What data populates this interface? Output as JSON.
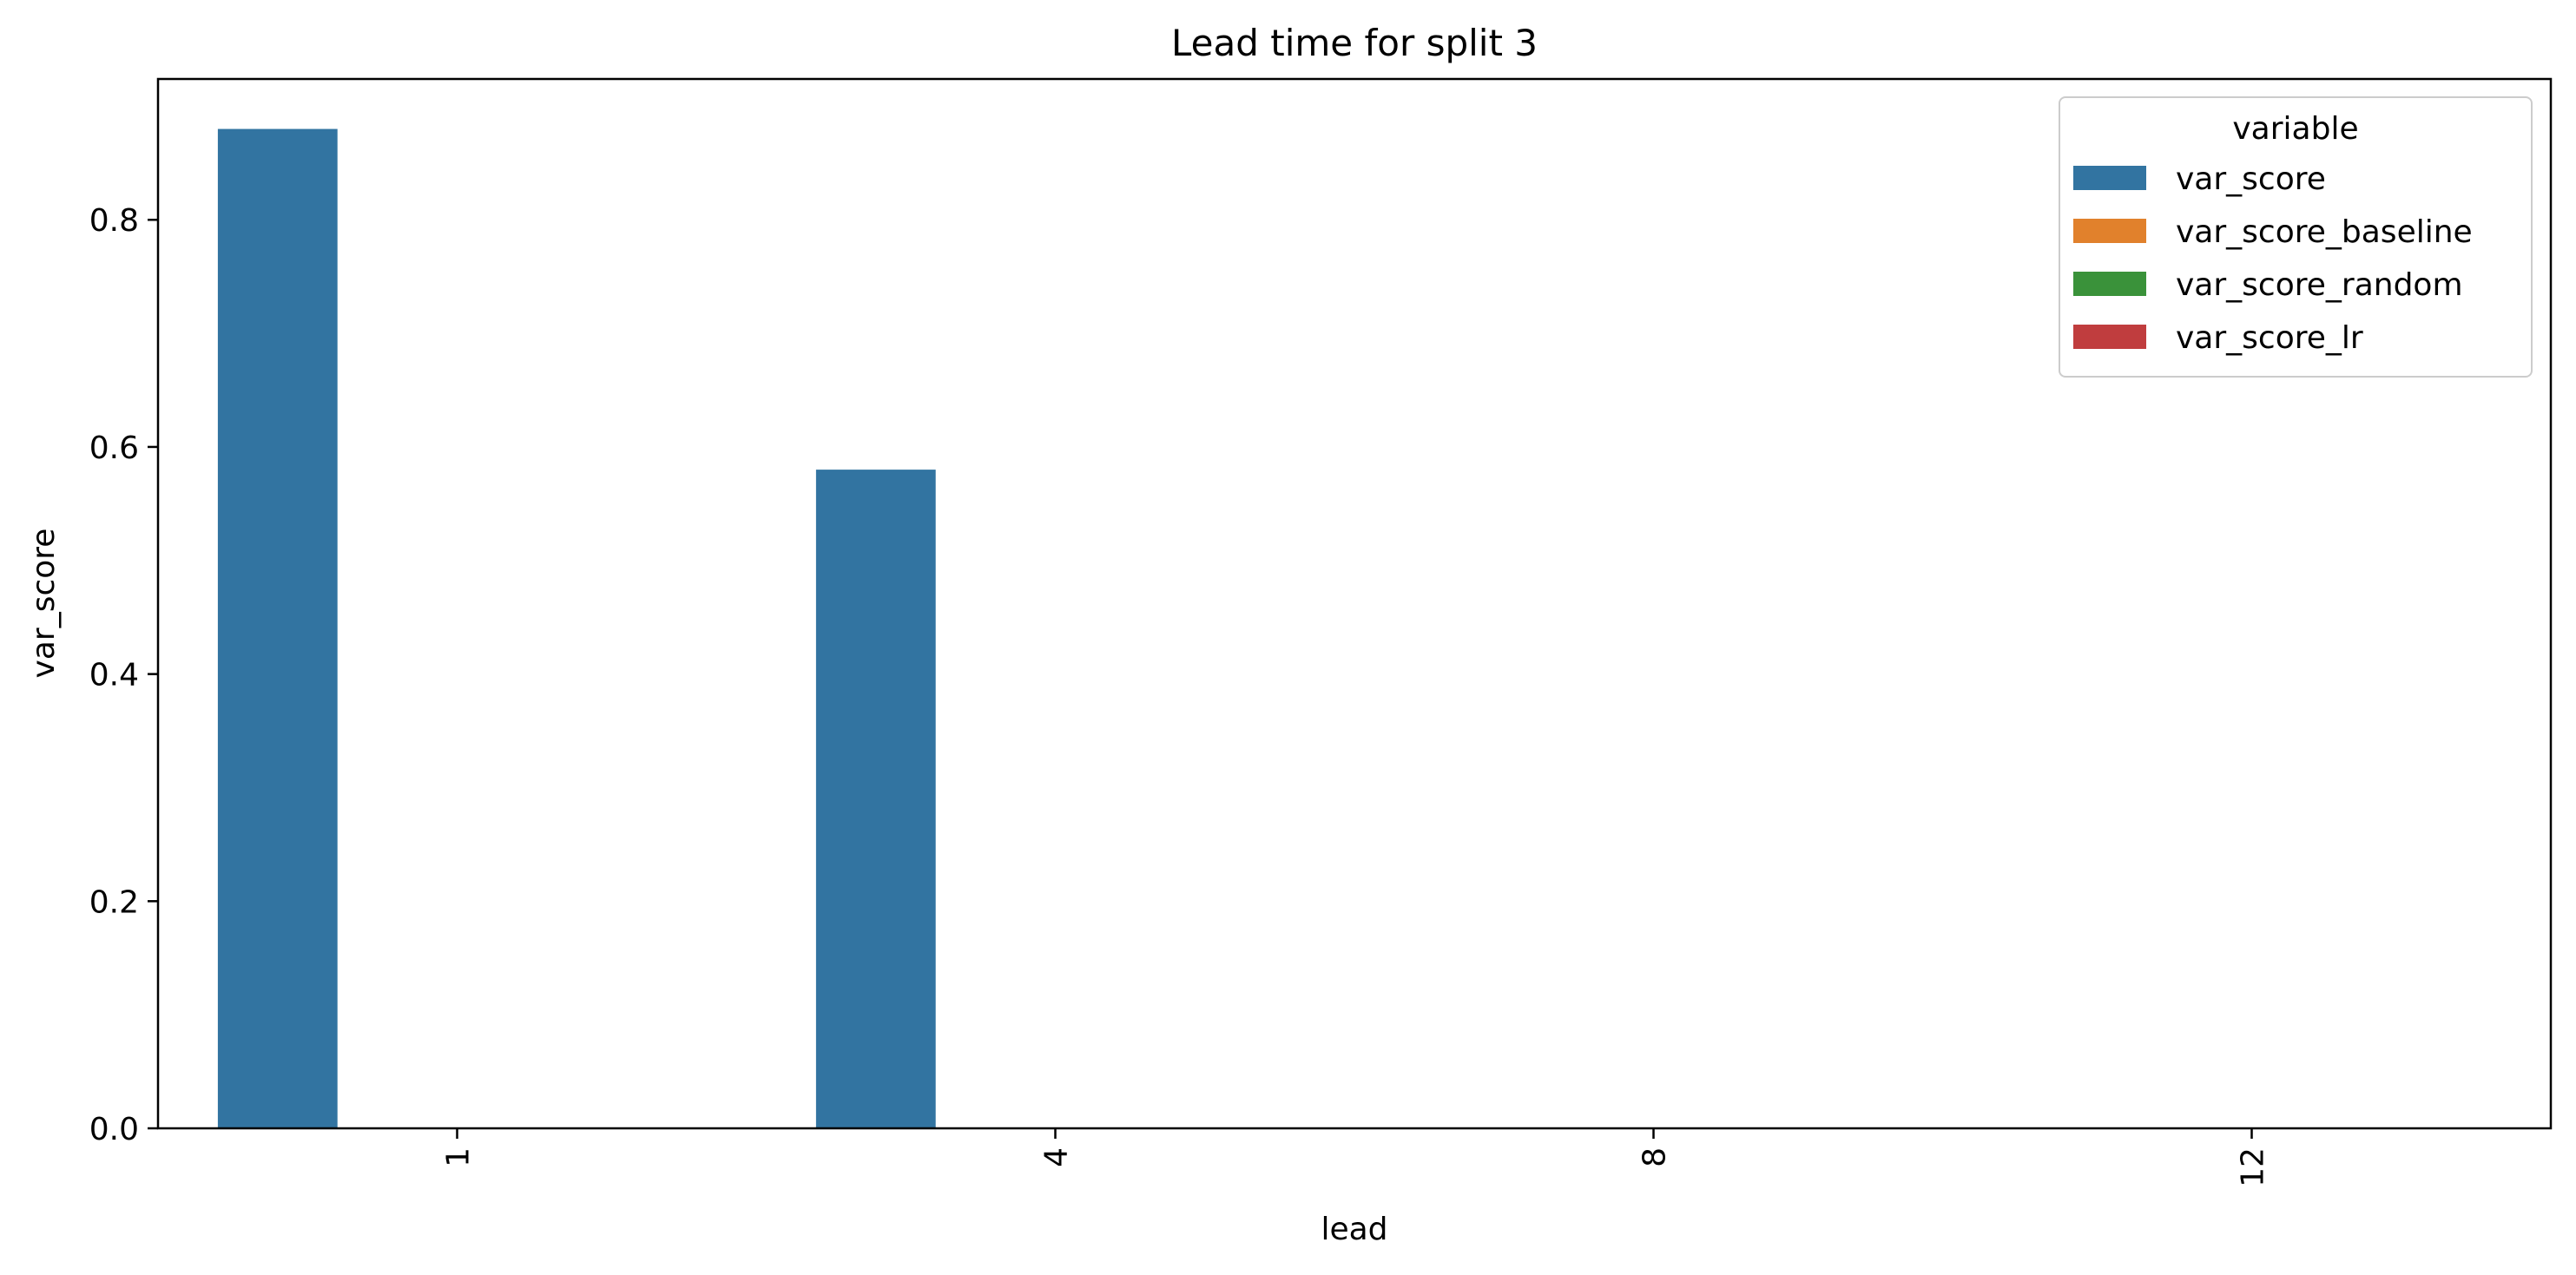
{
  "chart_data": {
    "type": "bar",
    "title": "Lead time for split 3",
    "xlabel": "lead",
    "ylabel": "var_score",
    "categories": [
      "1",
      "4",
      "8",
      "12"
    ],
    "series": [
      {
        "name": "var_score",
        "color": "#3274a1",
        "values": [
          0.88,
          0.58,
          0.0,
          0.0
        ]
      },
      {
        "name": "var_score_baseline",
        "color": "#e1812c",
        "values": [
          0.0,
          0.0,
          0.0,
          0.0
        ]
      },
      {
        "name": "var_score_random",
        "color": "#3a923a",
        "values": [
          0.0,
          0.0,
          0.0,
          0.0
        ]
      },
      {
        "name": "var_score_lr",
        "color": "#c03d3e",
        "values": [
          0.0,
          0.0,
          0.0,
          0.0
        ]
      }
    ],
    "ylim": [
      0,
      0.924
    ],
    "yticks": [
      "0.0",
      "0.2",
      "0.4",
      "0.6",
      "0.8"
    ],
    "legend": {
      "title": "variable",
      "position": "top-right"
    },
    "grid": false
  }
}
